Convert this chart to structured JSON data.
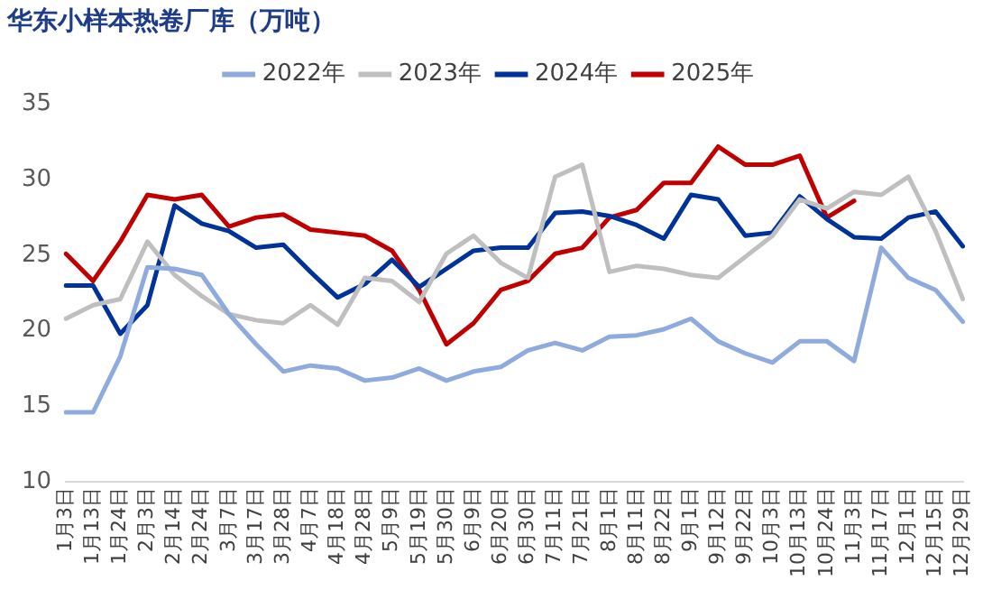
{
  "chart_data": {
    "type": "line",
    "title": "华东小样本热卷厂库（万吨）",
    "categories": [
      "1月3日",
      "1月13日",
      "1月24日",
      "2月3日",
      "2月14日",
      "2月24日",
      "3月7日",
      "3月17日",
      "3月28日",
      "4月7日",
      "4月18日",
      "4月28日",
      "5月9日",
      "5月19日",
      "5月30日",
      "6月9日",
      "6月20日",
      "6月30日",
      "7月11日",
      "7月21日",
      "8月1日",
      "8月11日",
      "8月22日",
      "9月1日",
      "9月12日",
      "9月22日",
      "10月3日",
      "10月13日",
      "10月24日",
      "11月3日",
      "11月17日",
      "12月1日",
      "12月15日",
      "12月29日"
    ],
    "series": [
      {
        "name": "2022年",
        "color": "#8faadc",
        "values": [
          14.6,
          14.6,
          18.3,
          24.2,
          24.1,
          23.7,
          21.1,
          19.1,
          17.3,
          17.7,
          17.5,
          16.7,
          16.9,
          17.5,
          16.7,
          17.3,
          17.6,
          18.7,
          19.2,
          18.7,
          19.6,
          19.7,
          20.1,
          20.8,
          19.3,
          18.5,
          17.9,
          19.3,
          19.3,
          18.0,
          25.5,
          23.5,
          22.7,
          20.6
        ]
      },
      {
        "name": "2023年",
        "color": "#bfbfbf",
        "values": [
          20.8,
          21.7,
          22.1,
          25.9,
          23.7,
          22.3,
          21.1,
          20.7,
          20.5,
          21.7,
          20.4,
          23.5,
          23.3,
          21.9,
          25.1,
          26.3,
          24.5,
          23.5,
          30.2,
          31.0,
          23.9,
          24.3,
          24.1,
          23.7,
          23.5,
          24.9,
          26.3,
          28.7,
          28.1,
          29.2,
          29.0,
          30.2,
          26.6,
          22.1
        ]
      },
      {
        "name": "2024年",
        "color": "#003399",
        "values": [
          23.0,
          23.0,
          19.8,
          21.7,
          28.3,
          27.1,
          26.6,
          25.5,
          25.7,
          23.9,
          22.2,
          23.1,
          24.7,
          22.9,
          24.1,
          25.3,
          25.5,
          25.5,
          27.8,
          27.9,
          27.6,
          27.0,
          26.1,
          29.0,
          28.7,
          26.3,
          26.5,
          28.9,
          27.4,
          26.2,
          26.1,
          27.5,
          27.9,
          25.6
        ]
      },
      {
        "name": "2025年",
        "color": "#c00000",
        "values": [
          25.1,
          23.3,
          25.9,
          29.0,
          28.7,
          29.0,
          26.9,
          27.5,
          27.7,
          26.7,
          26.5,
          26.3,
          25.3,
          22.7,
          19.1,
          20.5,
          22.7,
          23.3,
          25.1,
          25.5,
          27.5,
          28.0,
          29.8,
          29.8,
          32.2,
          31.0,
          31.0,
          31.6,
          27.5,
          28.6,
          null,
          null,
          null,
          null
        ]
      }
    ],
    "ylim": [
      10,
      35
    ],
    "yticks": [
      10,
      15,
      20,
      25,
      30,
      35
    ],
    "grid": false,
    "legend": "top",
    "marker": "none",
    "line_style": "solid"
  }
}
